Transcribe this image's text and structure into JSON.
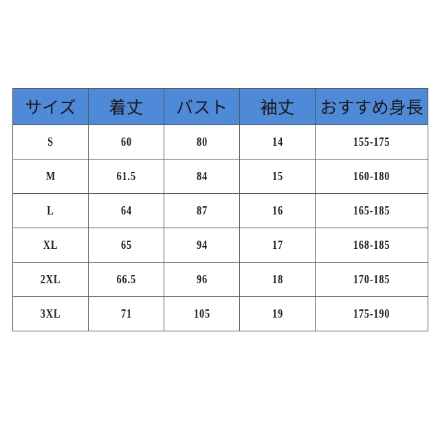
{
  "table": {
    "headers": [
      "サイズ",
      "着丈",
      "バスト",
      "袖丈",
      "おすすめ身長"
    ],
    "rows": [
      [
        "S",
        "60",
        "80",
        "14",
        "155-175"
      ],
      [
        "M",
        "61.5",
        "84",
        "15",
        "160-180"
      ],
      [
        "L",
        "64",
        "87",
        "16",
        "165-185"
      ],
      [
        "XL",
        "65",
        "94",
        "17",
        "168-185"
      ],
      [
        "2XL",
        "66.5",
        "96",
        "18",
        "170-185"
      ],
      [
        "3XL",
        "71",
        "105",
        "19",
        "175-190"
      ]
    ],
    "header_color": "#4f8ad8"
  }
}
